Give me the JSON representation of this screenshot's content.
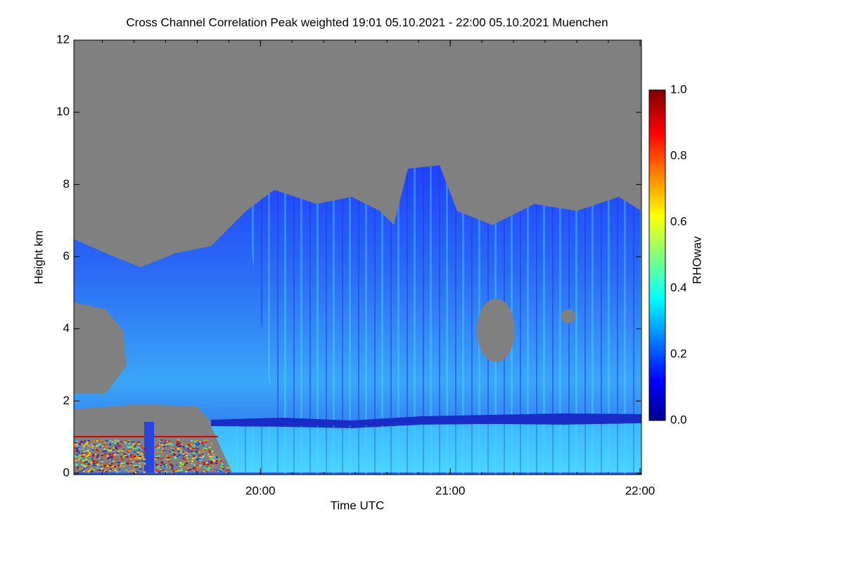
{
  "chart_data": {
    "type": "heatmap",
    "title": "Cross Channel Correlation Peak weighted   19:01 05.10.2021 - 22:00 05.10.2021 Muenchen",
    "xlabel": "Time UTC",
    "ylabel": "Height km",
    "xlim": [
      "19:01",
      "22:00"
    ],
    "xticks": [
      "20:00",
      "21:00",
      "22:00"
    ],
    "ylim": [
      0,
      12
    ],
    "yticks": [
      0,
      2,
      4,
      6,
      8,
      10,
      12
    ],
    "colorbar": {
      "label": "RHOwav",
      "lim": [
        0,
        1
      ],
      "ticks": [
        {
          "value": 0,
          "label": "0.0"
        },
        {
          "value": 0.2,
          "label": "0.2"
        },
        {
          "value": 0.4,
          "label": "0.4"
        },
        {
          "value": 0.6,
          "label": "0.6"
        },
        {
          "value": 0.8,
          "label": "0.8"
        },
        {
          "value": 1,
          "label": "1.0"
        }
      ]
    }
  }
}
